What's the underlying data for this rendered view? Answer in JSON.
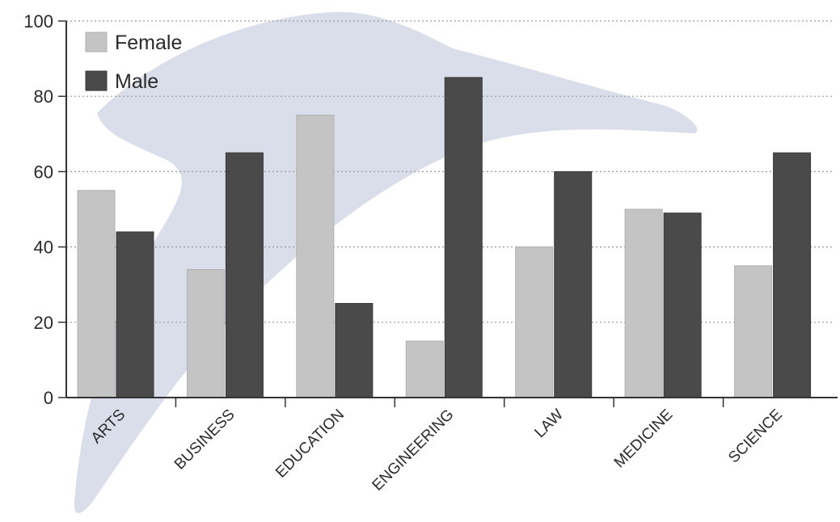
{
  "chart_data": {
    "type": "bar",
    "categories": [
      "ARTS",
      "BUSINESS",
      "EDUCATION",
      "ENGINEERING",
      "LAW",
      "MEDICINE",
      "SCIENCE"
    ],
    "series": [
      {
        "name": "Female",
        "values": [
          55,
          34,
          75,
          15,
          40,
          50,
          35
        ],
        "color": "#c4c4c4"
      },
      {
        "name": "Male",
        "values": [
          44,
          65,
          25,
          85,
          60,
          49,
          65
        ],
        "color": "#4a4a4a"
      }
    ],
    "ylim": [
      0,
      100
    ],
    "yticks": [
      0,
      20,
      40,
      60,
      80,
      100
    ],
    "grid": true,
    "legend": "top-left",
    "title": "",
    "xlabel": "",
    "ylabel": ""
  },
  "background_shape": "dolphin-silhouette",
  "background_color": "#d6d9e8"
}
